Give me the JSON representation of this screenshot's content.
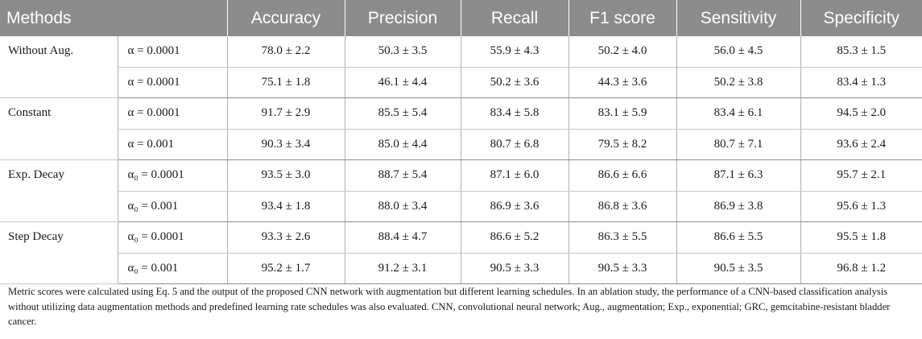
{
  "table": {
    "headers": [
      "Methods",
      "Accuracy",
      "Precision",
      "Recall",
      "F1 score",
      "Sensitivity",
      "Specificity"
    ],
    "groups": [
      {
        "method": "Without Aug.",
        "rows": [
          {
            "param": "α = 0.0001",
            "values": [
              "78.0 ± 2.2",
              "50.3 ± 3.5",
              "55.9 ± 4.3",
              "50.2 ± 4.0",
              "56.0 ± 4.5",
              "85.3 ± 1.5"
            ]
          },
          {
            "param": "α = 0.0001",
            "values": [
              "75.1 ± 1.8",
              "46.1 ± 4.4",
              "50.2 ± 3.6",
              "44.3 ± 3.6",
              "50.2 ± 3.8",
              "83.4 ± 1.3"
            ]
          }
        ]
      },
      {
        "method": "Constant",
        "rows": [
          {
            "param": "α = 0.0001",
            "values": [
              "91.7 ± 2.9",
              "85.5 ± 5.4",
              "83.4 ± 5.8",
              "83.1 ± 5.9",
              "83.4 ± 6.1",
              "94.5 ± 2.0"
            ]
          },
          {
            "param": "α = 0.001",
            "values": [
              "90.3 ± 3.4",
              "85.0 ± 4.4",
              "80.7 ± 6.8",
              "79.5 ± 8.2",
              "80.7 ± 7.1",
              "93.6 ± 2.4"
            ]
          }
        ]
      },
      {
        "method": "Exp. Decay",
        "rows": [
          {
            "param": "α₀ = 0.0001",
            "values": [
              "93.5 ± 3.0",
              "88.7 ± 5.4",
              "87.1 ± 6.0",
              "86.6 ± 6.6",
              "87.1 ± 6.3",
              "95.7 ± 2.1"
            ]
          },
          {
            "param": "α₀ = 0.001",
            "values": [
              "93.4 ± 1.8",
              "88.0 ± 3.4",
              "86.9 ± 3.6",
              "86.8 ± 3.6",
              "86.9 ± 3.8",
              "95.6 ± 1.3"
            ]
          }
        ]
      },
      {
        "method": "Step Decay",
        "rows": [
          {
            "param": "α₀ = 0.0001",
            "values": [
              "93.3 ± 2.6",
              "88.4 ± 4.7",
              "86.6 ± 5.2",
              "86.3 ± 5.5",
              "86.6 ± 5.5",
              "95.5 ± 1.8"
            ]
          },
          {
            "param": "α₀ = 0.001",
            "values": [
              "95.2 ± 1.7",
              "91.2 ± 3.1",
              "90.5 ± 3.3",
              "90.5 ± 3.3",
              "90.5 ± 3.5",
              "96.8 ± 1.2"
            ]
          }
        ]
      }
    ]
  },
  "footnote": "Metric scores were calculated using Eq. 5 and the output of the proposed CNN network with augmentation but different learning schedules. In an ablation study, the performance of a CNN-based classification analysis without utilizing data augmentation methods and predefined learning rate schedules was also evaluated. CNN, convolutional neural network; Aug., augmentation; Exp., exponential; GRC, gemcitabine-resistant bladder cancer."
}
